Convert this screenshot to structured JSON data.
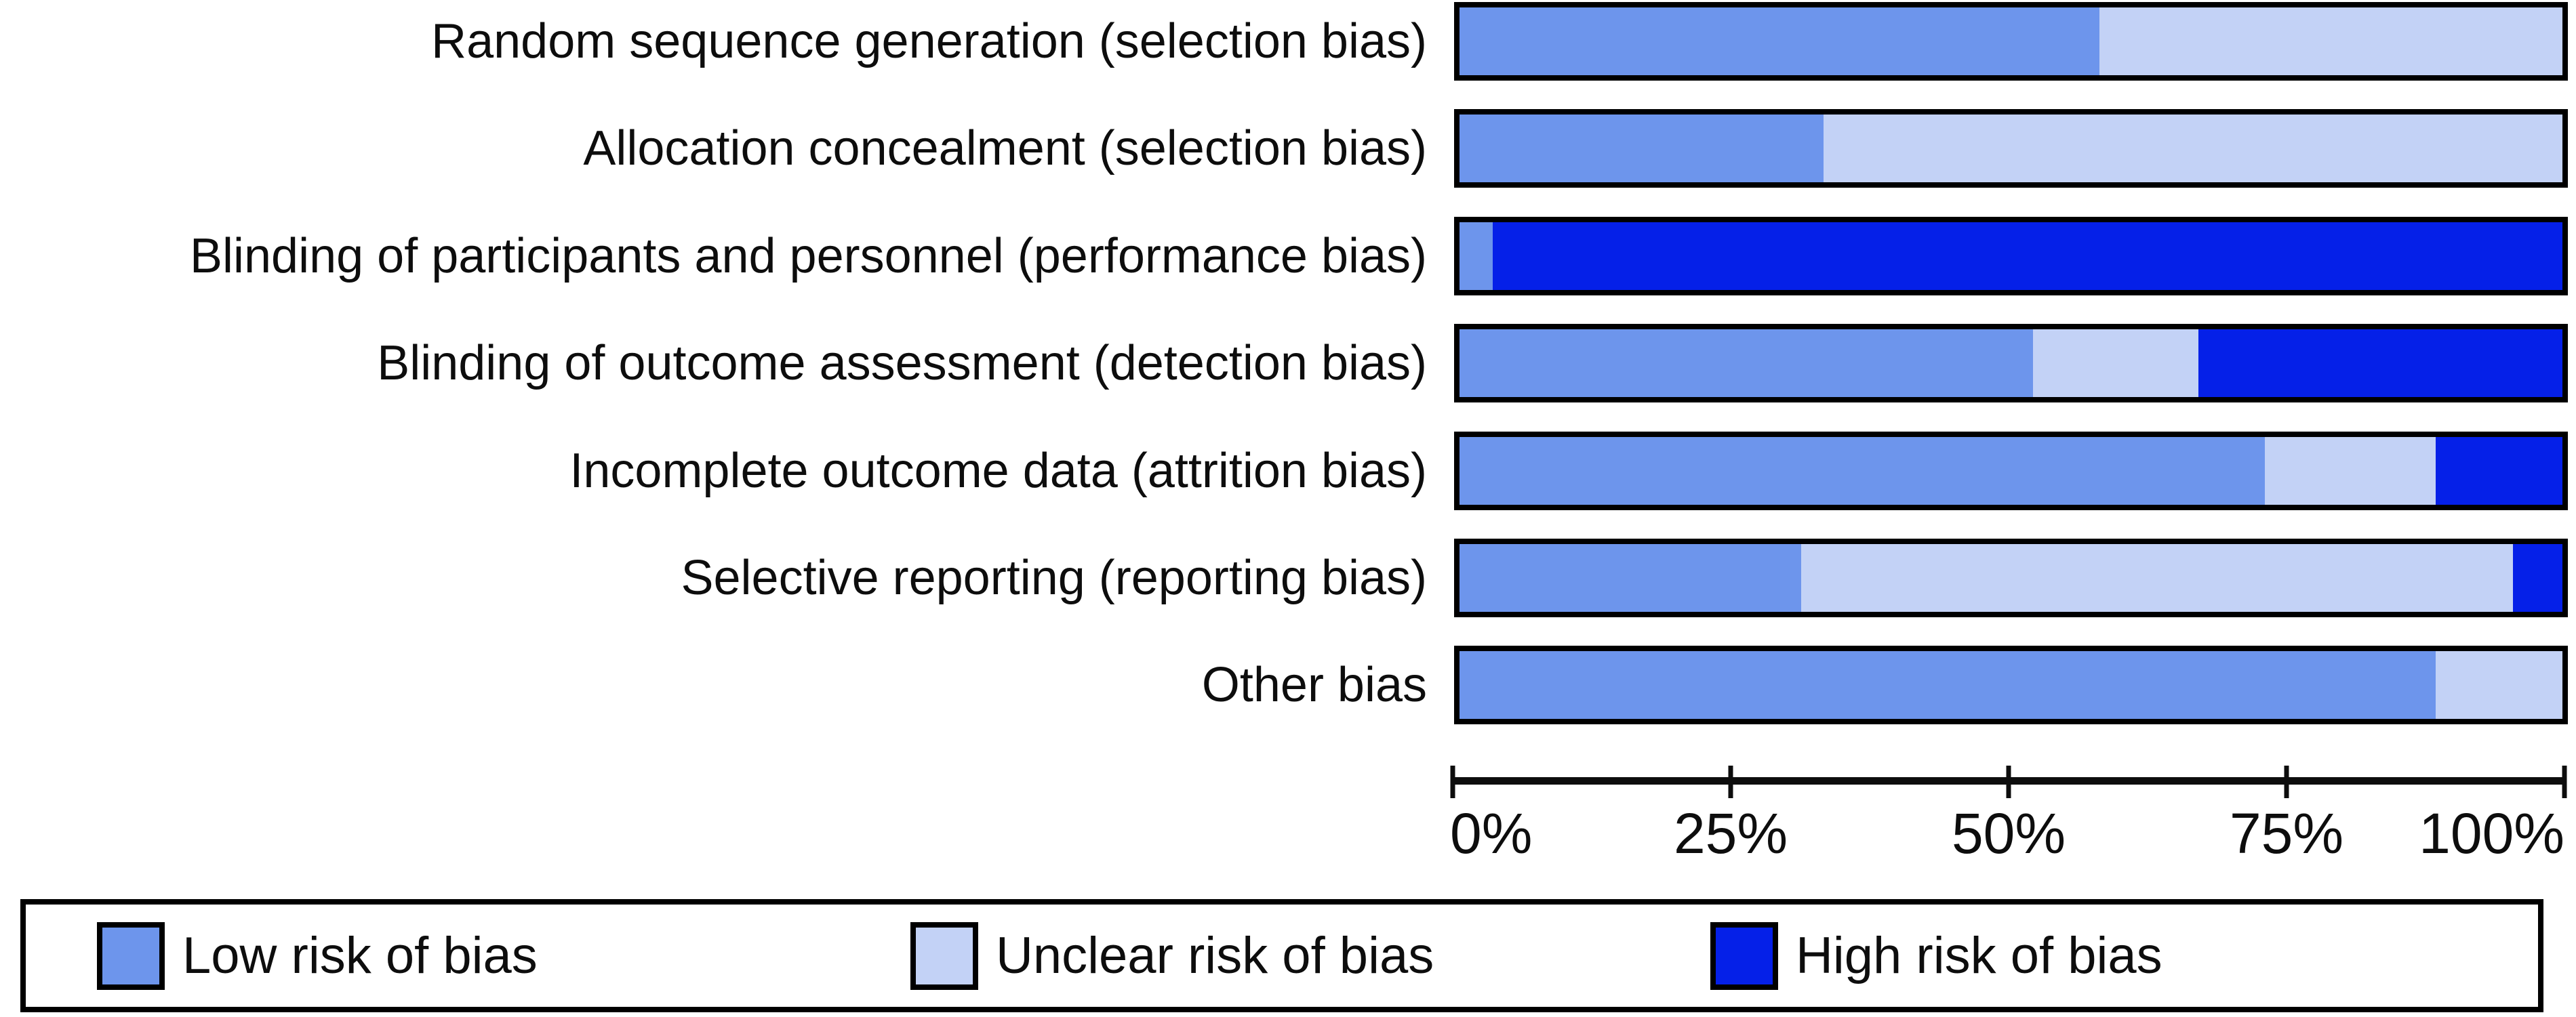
{
  "chart_data": {
    "type": "bar",
    "orientation": "horizontal_stacked",
    "title": "",
    "xlabel": "",
    "ylabel": "",
    "categories": [
      "Random sequence generation (selection bias)",
      "Allocation concealment (selection bias)",
      "Blinding of participants and personnel (performance bias)",
      "Blinding of outcome assessment (detection bias)",
      "Incomplete outcome data (attrition bias)",
      "Selective reporting (reporting bias)",
      "Other bias"
    ],
    "series": [
      {
        "name": "Low risk of bias",
        "color": "#6D95EC",
        "values": [
          58,
          33,
          3,
          52,
          73,
          31,
          88.5
        ]
      },
      {
        "name": "Unclear risk of bias",
        "color": "#C3D2F6",
        "values": [
          42,
          67,
          0,
          15,
          15.5,
          64.5,
          11.5
        ]
      },
      {
        "name": "High risk of bias",
        "color": "#0520E8",
        "values": [
          0,
          0,
          97,
          33,
          11.5,
          4.5,
          0
        ]
      }
    ],
    "xlim": [
      0,
      100
    ],
    "x_tick_values": [
      0,
      25,
      50,
      75,
      100
    ],
    "x_tick_labels": [
      "0%",
      "25%",
      "50%",
      "75%",
      "100%"
    ],
    "grid": false,
    "legend_position": "bottom"
  },
  "legend": {
    "items": [
      {
        "label": "Low risk of bias",
        "color": "#6D95EC"
      },
      {
        "label": "Unclear risk of bias",
        "color": "#C3D2F6"
      },
      {
        "label": "High risk of bias",
        "color": "#0520E8"
      }
    ]
  },
  "colors": {
    "bar_border": "#000000",
    "axis": "#0d0d0d",
    "text": "#0d0d0d",
    "background": "#FFFFFF"
  }
}
